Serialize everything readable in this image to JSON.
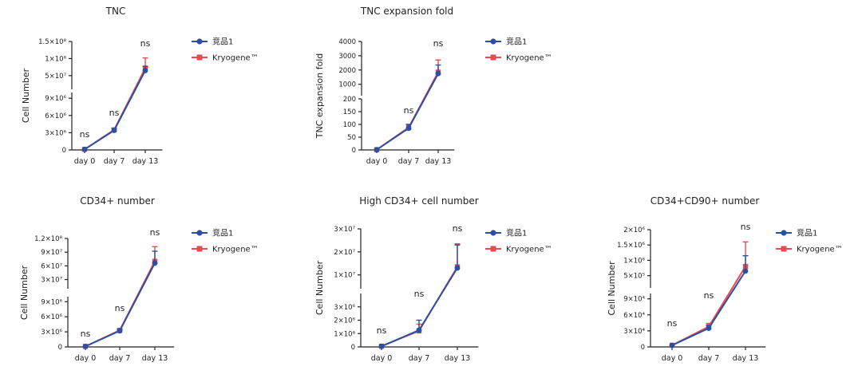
{
  "series_style": [
    {
      "name": "竞品1",
      "color": "#2B4FA2",
      "marker": "circle"
    },
    {
      "name": "Kryogene™",
      "color": "#E84A4F",
      "marker": "square"
    }
  ],
  "chart_data": [
    {
      "type": "line",
      "title": "TNC",
      "xlabel": "",
      "ylabel": "Cell Number",
      "categories": [
        "day 0",
        "day 7",
        "day 13"
      ],
      "y_axis_broken": true,
      "y_lower": {
        "range": [
          0,
          10000000
        ],
        "ticks": [
          0,
          3000000,
          6000000,
          9000000
        ],
        "tick_labels": [
          "0",
          "3×10⁶",
          "6×10⁶",
          "9×10⁶"
        ]
      },
      "y_upper": {
        "range": [
          10000000,
          150000000
        ],
        "ticks": [
          50000000,
          100000000,
          150000000
        ],
        "tick_labels": [
          "5×10⁷",
          "1×10⁸",
          "1.5×10⁸"
        ]
      },
      "series": [
        {
          "name": "竞品1",
          "values": [
            100000,
            3400000,
            65000000
          ],
          "err_upper": [
            0,
            300000,
            12000000
          ]
        },
        {
          "name": "Kryogene™",
          "values": [
            100000,
            3500000,
            72000000
          ],
          "err_upper": [
            0,
            300000,
            30000000
          ]
        }
      ],
      "annotations": [
        "ns",
        "ns",
        "ns"
      ],
      "legend": "right"
    },
    {
      "type": "line",
      "title": "TNC expansion fold",
      "xlabel": "",
      "ylabel": "TNC expansion fold",
      "categories": [
        "day 0",
        "day 7",
        "day 13"
      ],
      "y_axis_broken": true,
      "y_lower": {
        "range": [
          0,
          200
        ],
        "ticks": [
          0,
          50,
          100,
          150,
          200
        ],
        "tick_labels": [
          "0",
          "50",
          "100",
          "150",
          "200"
        ]
      },
      "y_upper": {
        "range": [
          200,
          4000
        ],
        "ticks": [
          1000,
          2000,
          3000,
          4000
        ],
        "tick_labels": [
          "1000",
          "2000",
          "3000",
          "4000"
        ]
      },
      "series": [
        {
          "name": "竞品1",
          "values": [
            1,
            85,
            1750
          ],
          "err_upper": [
            0,
            15,
            600
          ]
        },
        {
          "name": "Kryogene™",
          "values": [
            1,
            88,
            1850
          ],
          "err_upper": [
            0,
            12,
            850
          ]
        }
      ],
      "annotations": [
        "",
        "ns",
        "ns"
      ],
      "legend": "right"
    },
    {
      "type": "line",
      "title": "CD34+ number",
      "xlabel": "",
      "ylabel": "Cell Number",
      "categories": [
        "day 0",
        "day 7",
        "day 13"
      ],
      "y_axis_broken": true,
      "y_lower": {
        "range": [
          0,
          10000000
        ],
        "ticks": [
          0,
          3000000,
          6000000,
          9000000
        ],
        "tick_labels": [
          "0",
          "3×10⁶",
          "6×10⁶",
          "9×10⁶"
        ]
      },
      "y_upper": {
        "range": [
          10000000,
          120000000
        ],
        "ticks": [
          30000000,
          60000000,
          90000000,
          120000000
        ],
        "tick_labels": [
          "3×10⁷",
          "6×10⁷",
          "9×10⁷",
          "1.2×10⁸"
        ]
      },
      "series": [
        {
          "name": "竞品1",
          "values": [
            100000,
            3200000,
            66000000
          ],
          "err_upper": [
            0,
            300000,
            26000000
          ]
        },
        {
          "name": "Kryogene™",
          "values": [
            100000,
            3300000,
            70000000
          ],
          "err_upper": [
            0,
            300000,
            32000000
          ]
        }
      ],
      "annotations": [
        "ns",
        "ns",
        "ns"
      ],
      "legend": "right"
    },
    {
      "type": "line",
      "title": "High CD34+ cell number",
      "xlabel": "",
      "ylabel": "Cell Number",
      "categories": [
        "day 0",
        "day 7",
        "day 13"
      ],
      "y_axis_broken": true,
      "y_lower": {
        "range": [
          0,
          4000000
        ],
        "ticks": [
          0,
          1000000,
          2000000,
          3000000
        ],
        "tick_labels": [
          "0",
          "1×10⁶",
          "2×10⁶",
          "3×10⁶"
        ]
      },
      "y_upper": {
        "range": [
          4000000,
          30000000
        ],
        "ticks": [
          10000000,
          20000000,
          30000000
        ],
        "tick_labels": [
          "1×10⁷",
          "2×10⁷",
          "3×10⁷"
        ]
      },
      "series": [
        {
          "name": "竞品1",
          "values": [
            50000,
            1250000,
            13000000
          ],
          "err_upper": [
            0,
            750000,
            10000000
          ]
        },
        {
          "name": "Kryogene™",
          "values": [
            50000,
            1200000,
            13500000
          ],
          "err_upper": [
            0,
            500000,
            10000000
          ]
        }
      ],
      "annotations": [
        "ns",
        "ns",
        "ns"
      ],
      "legend": "right"
    },
    {
      "type": "line",
      "title": "CD34+CD90+ number",
      "xlabel": "",
      "ylabel": "Cell Number",
      "categories": [
        "day 0",
        "day 7",
        "day 13"
      ],
      "y_axis_broken": true,
      "y_lower": {
        "range": [
          0,
          100000
        ],
        "ticks": [
          0,
          30000,
          60000,
          90000
        ],
        "tick_labels": [
          "0",
          "3×10⁴",
          "6×10⁴",
          "9×10⁴"
        ]
      },
      "y_upper": {
        "range": [
          100000,
          2000000
        ],
        "ticks": [
          500000,
          1000000,
          1500000,
          2000000
        ],
        "tick_labels": [
          "5×10⁵",
          "1×10⁶",
          "1.5×10⁶",
          "2×10⁶"
        ]
      },
      "series": [
        {
          "name": "竞品1",
          "values": [
            3000,
            35000,
            650000
          ],
          "err_upper": [
            0,
            5000,
            500000
          ]
        },
        {
          "name": "Kryogene™",
          "values": [
            3000,
            38000,
            800000
          ],
          "err_upper": [
            0,
            6000,
            800000
          ]
        }
      ],
      "annotations": [
        "ns",
        "ns",
        "ns"
      ],
      "legend": "right"
    }
  ]
}
